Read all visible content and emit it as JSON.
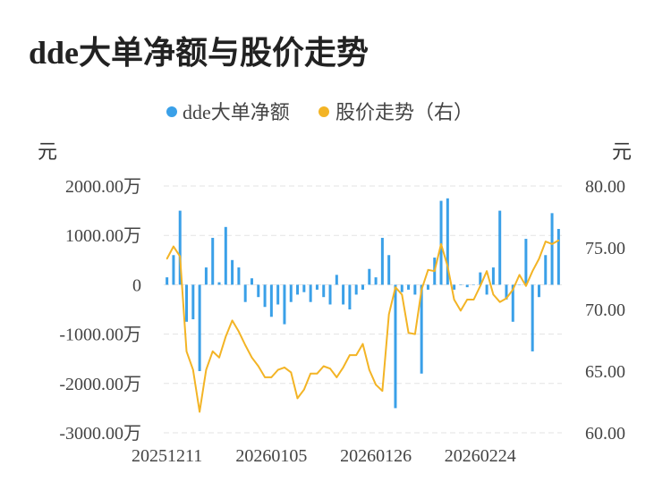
{
  "title": "dde大单净额与股价走势",
  "chart_data": {
    "type": "bar+line",
    "legend": [
      {
        "name": "dde大单净额",
        "color": "#3aa0e8"
      },
      {
        "name": "股价走势（右）",
        "color": "#f3b425"
      }
    ],
    "left_unit": "元",
    "right_unit": "元",
    "y_left": {
      "min": -3000,
      "max": 2000,
      "ticks": [
        2000,
        1000,
        0,
        -1000,
        -2000,
        -3000
      ],
      "tick_labels": [
        "2000.00万",
        "1000.00万",
        "0",
        "-1000.00万",
        "-2000.00万",
        "-3000.00万"
      ]
    },
    "y_right": {
      "min": 60,
      "max": 80,
      "ticks": [
        80,
        75,
        70,
        65,
        60
      ],
      "tick_labels": [
        "80.00",
        "75.00",
        "70.00",
        "65.00",
        "60.00"
      ]
    },
    "x_tick_labels": [
      {
        "index": 0,
        "label": "20251211"
      },
      {
        "index": 16,
        "label": "20260105"
      },
      {
        "index": 32,
        "label": "20260126"
      },
      {
        "index": 48,
        "label": "20260224"
      }
    ],
    "grid": true,
    "series": [
      {
        "name": "dde大单净额",
        "kind": "bar",
        "unit": "万",
        "values": [
          150,
          600,
          1500,
          -750,
          -700,
          -1750,
          350,
          950,
          50,
          1170,
          500,
          350,
          -350,
          130,
          -250,
          -450,
          -650,
          -400,
          -800,
          -350,
          -200,
          -150,
          -350,
          -100,
          -250,
          -400,
          200,
          -400,
          -500,
          -200,
          -100,
          320,
          150,
          950,
          600,
          -2500,
          -150,
          -100,
          -200,
          -1800,
          -100,
          550,
          1700,
          1750,
          -100,
          0,
          -50,
          0,
          250,
          -200,
          350,
          1500,
          -300,
          -750,
          0,
          930,
          -1350,
          -250,
          600,
          1450,
          1130
        ]
      },
      {
        "name": "股价走势（右）",
        "kind": "line",
        "axis": "right",
        "values": [
          74.1,
          75.1,
          74.3,
          66.6,
          65.1,
          61.7,
          65.1,
          66.6,
          66.1,
          67.8,
          69.1,
          68.2,
          67.1,
          66.1,
          65.4,
          64.5,
          64.5,
          65.1,
          65.3,
          64.9,
          62.8,
          63.5,
          64.8,
          64.8,
          65.4,
          65.2,
          64.5,
          65.3,
          66.3,
          66.3,
          67.2,
          65.1,
          63.9,
          63.4,
          69.6,
          71.8,
          71.2,
          68.1,
          68.0,
          71.6,
          73.2,
          73.1,
          75.3,
          73.5,
          70.8,
          69.9,
          70.8,
          70.8,
          71.9,
          73.1,
          71.2,
          70.6,
          70.9,
          71.6,
          72.8,
          71.9,
          73.1,
          74.1,
          75.5,
          75.3,
          75.6
        ]
      }
    ]
  }
}
